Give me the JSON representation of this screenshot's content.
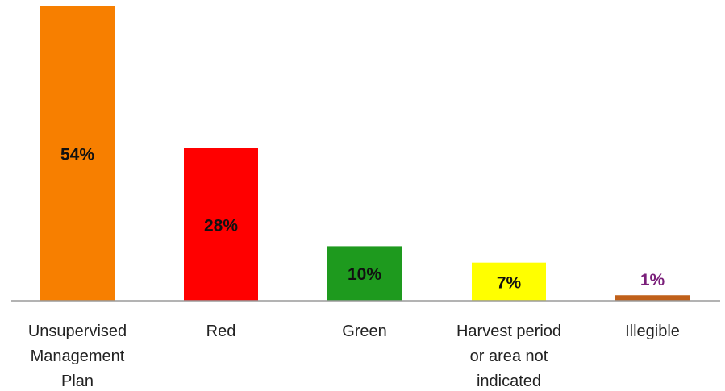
{
  "chart_data": {
    "type": "bar",
    "categories": [
      [
        "Unsupervised",
        "Management",
        "Plan"
      ],
      [
        "Red"
      ],
      [
        "Green"
      ],
      [
        "Harvest period",
        "or area not",
        "indicated"
      ],
      [
        "Illegible"
      ]
    ],
    "values": [
      54,
      28,
      10,
      7,
      1
    ],
    "data_labels": [
      "54%",
      "28%",
      "10%",
      "7%",
      "1%"
    ],
    "colors": [
      "#F77F00",
      "#FF0000",
      "#1E9A1E",
      "#FFFF00",
      "#C0601A"
    ],
    "label_colors": [
      "#111111",
      "#111111",
      "#111111",
      "#111111",
      "#7A1F7A"
    ],
    "title": "",
    "xlabel": "",
    "ylabel": "",
    "ylim": [
      0,
      54
    ],
    "grid": false,
    "legend": "none"
  }
}
